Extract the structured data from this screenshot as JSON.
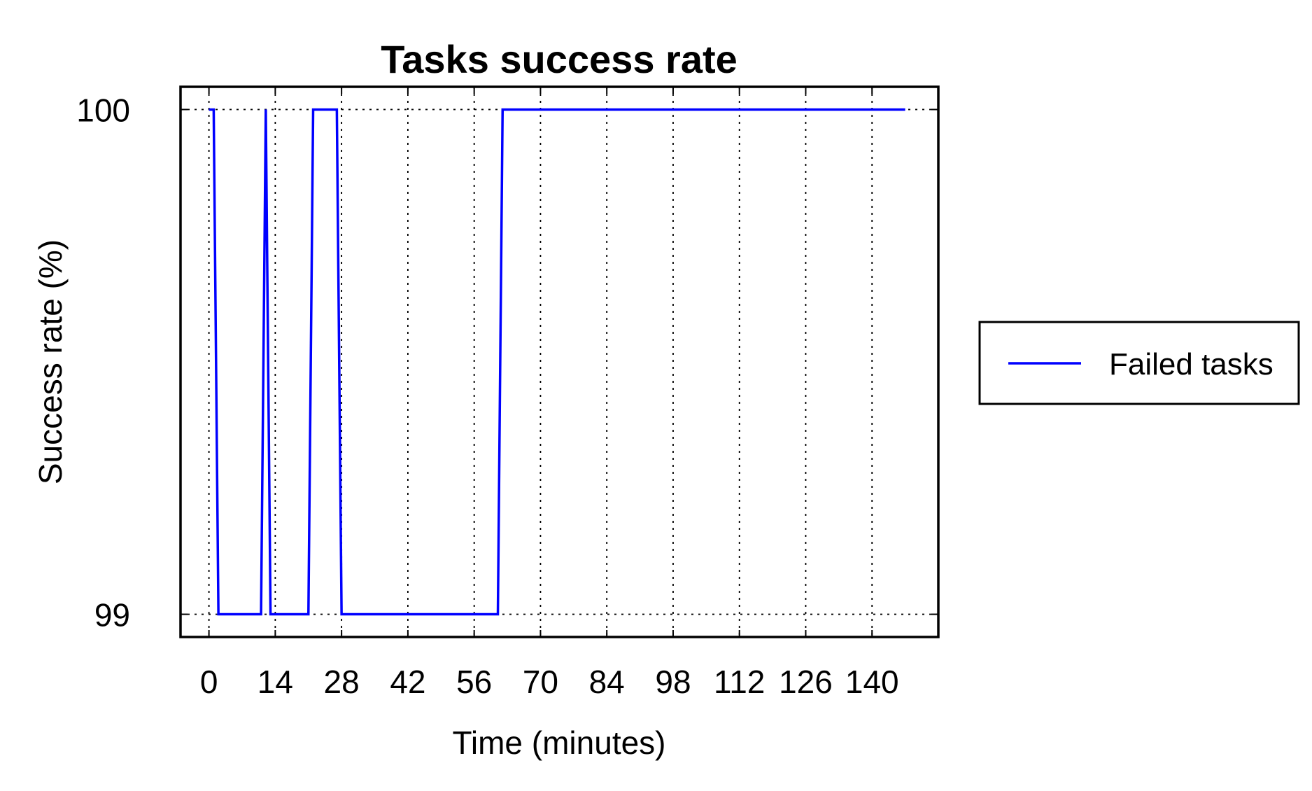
{
  "chart_data": {
    "type": "line",
    "title": "Tasks success rate",
    "xlabel": "Time (minutes)",
    "ylabel": "Success rate (%)",
    "xlim": [
      -6,
      154
    ],
    "ylim": [
      98.955,
      100.045
    ],
    "xticks": [
      0,
      14,
      28,
      42,
      56,
      70,
      84,
      98,
      112,
      126,
      140
    ],
    "yticks": [
      99,
      100
    ],
    "grid": true,
    "legend_position": "right",
    "series": [
      {
        "name": "Failed tasks",
        "color": "#0000ff",
        "x": [
          0,
          1,
          2,
          11,
          12,
          13,
          21,
          22,
          27,
          28,
          61,
          62,
          147
        ],
        "y": [
          100,
          100,
          99,
          99,
          100,
          99,
          99,
          100,
          100,
          99,
          99,
          100,
          100
        ]
      }
    ]
  }
}
